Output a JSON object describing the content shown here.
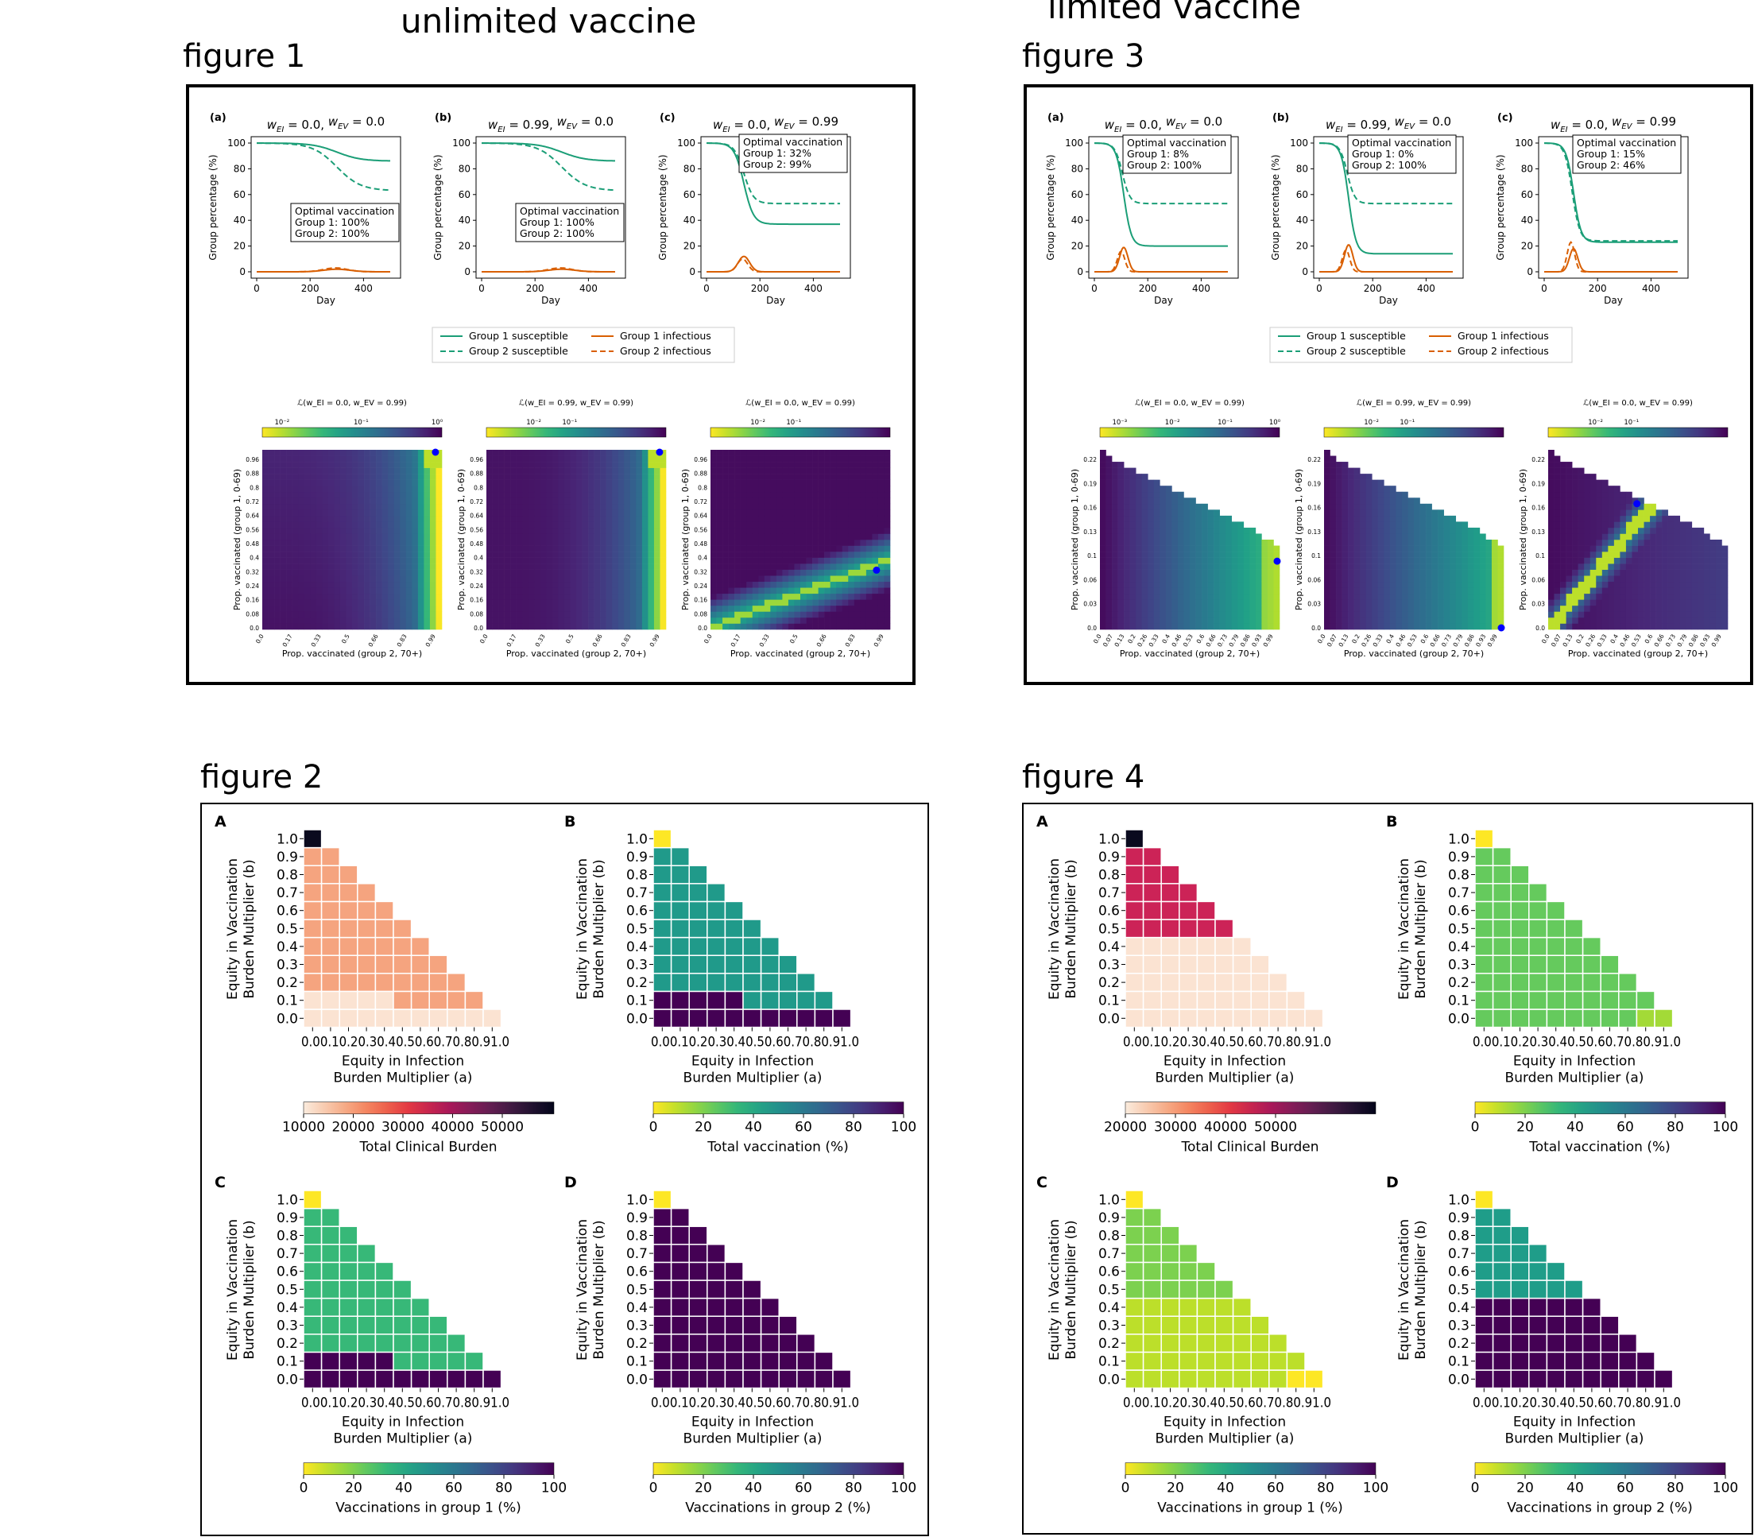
{
  "headings": {
    "unlimited": "unlimited vaccine",
    "limited": "limited vaccine",
    "fig1": "figure 1",
    "fig2": "figure 2",
    "fig3": "figure 3",
    "fig4": "figure 4"
  },
  "colors": {
    "susceptible": "#1b9e77",
    "infectious": "#d95f02",
    "optimal_point": "#0000ff",
    "heat_bg": "#440154"
  },
  "figure1": {
    "line_panels": [
      {
        "letter": "(a)",
        "title_wei": "0.0",
        "title_wev": "0.0",
        "box_lines": [
          "Optimal vaccination",
          "Group 1: 100%",
          "Group 2: 100%"
        ],
        "box_pos": "center-right"
      },
      {
        "letter": "(b)",
        "title_wei": "0.99",
        "title_wev": "0.0",
        "box_lines": [
          "Optimal vaccination",
          "Group 1: 100%",
          "Group 2: 100%"
        ],
        "box_pos": "center-right"
      },
      {
        "letter": "(c)",
        "title_wei": "0.0",
        "title_wev": "0.99",
        "box_lines": [
          "Optimal vaccination",
          "Group 1: 32%",
          "Group 2: 99%"
        ],
        "box_pos": "top-right"
      }
    ],
    "ylabel": "Group percentage (%)",
    "xlabel": "Day",
    "xticks": [
      "0",
      "200",
      "400"
    ],
    "yticks": [
      "0",
      "20",
      "40",
      "60",
      "80",
      "100"
    ],
    "legend": [
      "Group 1 susceptible",
      "Group 2 susceptible",
      "Group 1 infectious",
      "Group 2 infectious"
    ],
    "heat_panels": [
      {
        "cbar_title": "ℒ(w_EI = 0.0, w_EV = 0.99)",
        "cbar_ticks": [
          "10⁻²",
          "10⁻¹",
          "10⁰"
        ],
        "opt": [
          0.99,
          0.99
        ]
      },
      {
        "cbar_title": "ℒ(w_EI = 0.99, w_EV = 0.99)",
        "cbar_ticks": [
          "10⁻²",
          "10⁻¹"
        ],
        "opt": [
          0.99,
          1.0
        ]
      },
      {
        "cbar_title": "ℒ(w_EI = 0.0, w_EV = 0.99)",
        "cbar_ticks": [
          "10⁻²",
          "10⁻¹"
        ],
        "opt": [
          0.99,
          0.32
        ]
      }
    ],
    "heat_yticks": [
      "0.96",
      "0.88",
      "0.8",
      "0.72",
      "0.64",
      "0.56",
      "0.48",
      "0.4",
      "0.32",
      "0.24",
      "0.16",
      "0.08",
      "0.0"
    ],
    "heat_xticks": [
      "0.0",
      "0.17",
      "0.33",
      "0.5",
      "0.66",
      "0.83",
      "0.99"
    ],
    "heat_ylabel": "Prop. vaccinated (group 1, 0-69)",
    "heat_xlabel": "Prop. vaccinated (group 2, 70+)"
  },
  "figure3": {
    "line_panels": [
      {
        "letter": "(a)",
        "title_wei": "0.0",
        "title_wev": "0.0",
        "box_lines": [
          "Optimal vaccination",
          "Group 1: 8%",
          "Group 2: 100%"
        ]
      },
      {
        "letter": "(b)",
        "title_wei": "0.99",
        "title_wev": "0.0",
        "box_lines": [
          "Optimal vaccination",
          "Group 1: 0%",
          "Group 2: 100%"
        ]
      },
      {
        "letter": "(c)",
        "title_wei": "0.0",
        "title_wev": "0.99",
        "box_lines": [
          "Optimal vaccination",
          "Group 1: 15%",
          "Group 2: 46%"
        ]
      }
    ],
    "heat_panels": [
      {
        "cbar_title": "ℒ(w_EI = 0.0, w_EV = 0.99)",
        "cbar_ticks": [
          "10⁻³",
          "10⁻²",
          "10⁻¹",
          "10⁰"
        ]
      },
      {
        "cbar_title": "ℒ(w_EI = 0.99, w_EV = 0.99)",
        "cbar_ticks": [
          "10⁻²",
          "10⁻¹"
        ]
      },
      {
        "cbar_title": "ℒ(w_EI = 0.0, w_EV = 0.99)",
        "cbar_ticks": [
          "10⁻²",
          "10⁻¹"
        ]
      }
    ],
    "heat_yticks": [
      "0.22",
      "0.19",
      "0.16",
      "0.13",
      "0.1",
      "0.06",
      "0.03",
      "0.0"
    ],
    "heat_xticks": [
      "0.0",
      "0.07",
      "0.13",
      "0.2",
      "0.26",
      "0.33",
      "0.4",
      "0.46",
      "0.53",
      "0.6",
      "0.66",
      "0.73",
      "0.79",
      "0.86",
      "0.93",
      "0.99"
    ]
  },
  "figure2": {
    "grid_panels": [
      {
        "letter": "A",
        "cbar_label": "Total Clinical Burden",
        "cbar_ticks": [
          "10000",
          "20000",
          "30000",
          "40000",
          "50000"
        ],
        "scheme": "burden2"
      },
      {
        "letter": "B",
        "cbar_label": "Total vaccination (%)",
        "cbar_ticks": [
          "0",
          "20",
          "40",
          "60",
          "80",
          "100"
        ],
        "scheme": "vacc2"
      },
      {
        "letter": "C",
        "cbar_label": "Vaccinations in group 1 (%)",
        "cbar_ticks": [
          "0",
          "20",
          "40",
          "60",
          "80",
          "100"
        ],
        "scheme": "g1_2"
      },
      {
        "letter": "D",
        "cbar_label": "Vaccinations in group 2 (%)",
        "cbar_ticks": [
          "0",
          "20",
          "40",
          "60",
          "80",
          "100"
        ],
        "scheme": "g2_2"
      }
    ]
  },
  "figure4": {
    "grid_panels": [
      {
        "letter": "A",
        "cbar_label": "Total Clinical Burden",
        "cbar_ticks": [
          "20000",
          "30000",
          "40000",
          "50000"
        ],
        "scheme": "burden4"
      },
      {
        "letter": "B",
        "cbar_label": "Total vaccination (%)",
        "cbar_ticks": [
          "0",
          "20",
          "40",
          "60",
          "80",
          "100"
        ],
        "scheme": "vacc4"
      },
      {
        "letter": "C",
        "cbar_label": "Vaccinations in group 1 (%)",
        "cbar_ticks": [
          "0",
          "20",
          "40",
          "60",
          "80",
          "100"
        ],
        "scheme": "g1_4"
      },
      {
        "letter": "D",
        "cbar_label": "Vaccinations in group 2 (%)",
        "cbar_ticks": [
          "0",
          "20",
          "40",
          "60",
          "80",
          "100"
        ],
        "scheme": "g2_4"
      }
    ]
  },
  "grid_common": {
    "yticks": [
      "0.0",
      "0.1",
      "0.2",
      "0.3",
      "0.4",
      "0.5",
      "0.6",
      "0.7",
      "0.8",
      "0.9",
      "1.0"
    ],
    "xtick_text": "0.00.10.20.30.40.50.60.70.80.91.0",
    "ylabel_lines": [
      "Equity in Vaccination",
      "Burden Multiplier (b)"
    ],
    "xlabel_lines": [
      "Equity in Infection",
      "Burden Multiplier (a)"
    ]
  },
  "chart_data": [
    {
      "type": "line",
      "title": "figure 1 (a)",
      "x_range": [
        0,
        500
      ],
      "ylim": [
        0,
        100
      ],
      "series": [
        {
          "name": "Group 1 susceptible",
          "final": 86
        },
        {
          "name": "Group 2 susceptible",
          "final": 63
        },
        {
          "name": "Group 1 infectious",
          "peak": 2
        },
        {
          "name": "Group 2 infectious",
          "peak": 3
        }
      ]
    },
    {
      "type": "line",
      "title": "figure 1 (b)",
      "x_range": [
        0,
        500
      ],
      "ylim": [
        0,
        100
      ],
      "series": [
        {
          "name": "Group 1 susceptible",
          "final": 86
        },
        {
          "name": "Group 2 susceptible",
          "final": 63
        },
        {
          "name": "Group 1 infectious",
          "peak": 2
        },
        {
          "name": "Group 2 infectious",
          "peak": 3
        }
      ]
    },
    {
      "type": "line",
      "title": "figure 1 (c)",
      "x_range": [
        0,
        500
      ],
      "ylim": [
        0,
        100
      ],
      "series": [
        {
          "name": "Group 1 susceptible",
          "final": 37
        },
        {
          "name": "Group 2 susceptible",
          "final": 53
        },
        {
          "name": "Group 1 infectious",
          "peak": 12
        },
        {
          "name": "Group 2 infectious",
          "peak": 10
        }
      ]
    },
    {
      "type": "line",
      "title": "figure 3 (a)",
      "x_range": [
        0,
        500
      ],
      "ylim": [
        0,
        100
      ],
      "series": [
        {
          "name": "Group 1 susceptible",
          "final": 20
        },
        {
          "name": "Group 2 susceptible",
          "final": 53
        },
        {
          "name": "Group 1 infectious",
          "peak": 19
        },
        {
          "name": "Group 2 infectious",
          "peak": 16
        }
      ]
    },
    {
      "type": "line",
      "title": "figure 3 (b)",
      "x_range": [
        0,
        500
      ],
      "ylim": [
        0,
        100
      ],
      "series": [
        {
          "name": "Group 1 susceptible",
          "final": 14
        },
        {
          "name": "Group 2 susceptible",
          "final": 53
        },
        {
          "name": "Group 1 infectious",
          "peak": 21
        },
        {
          "name": "Group 2 infectious",
          "peak": 17
        }
      ]
    },
    {
      "type": "line",
      "title": "figure 3 (c)",
      "x_range": [
        0,
        500
      ],
      "ylim": [
        0,
        100
      ],
      "series": [
        {
          "name": "Group 1 susceptible",
          "final": 23
        },
        {
          "name": "Group 2 susceptible",
          "final": 24
        },
        {
          "name": "Group 1 infectious",
          "peak": 18
        },
        {
          "name": "Group 2 infectious",
          "peak": 23
        }
      ]
    },
    {
      "type": "heatmap",
      "title": "figure 2 / figure 4 equity grids",
      "x": [
        0.0,
        0.1,
        0.2,
        0.3,
        0.4,
        0.5,
        0.6,
        0.7,
        0.8,
        0.9,
        1.0
      ],
      "y": [
        0.0,
        0.1,
        0.2,
        0.3,
        0.4,
        0.5,
        0.6,
        0.7,
        0.8,
        0.9,
        1.0
      ],
      "valid": "a + b <= 1"
    }
  ]
}
